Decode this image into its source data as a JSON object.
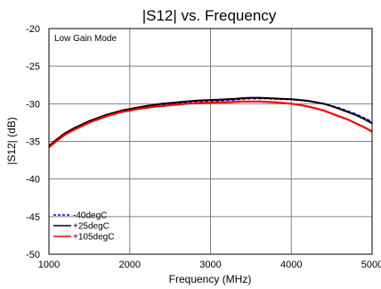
{
  "chart_data": {
    "type": "line",
    "title": "|S12| vs. Frequency",
    "xlabel": "Frequency (MHz)",
    "ylabel": "|S12| (dB)",
    "xlim": [
      1000,
      5000
    ],
    "ylim": [
      -50,
      -20
    ],
    "xticks": [
      1000,
      2000,
      3000,
      4000,
      5000
    ],
    "yticks": [
      -20,
      -25,
      -30,
      -35,
      -40,
      -45,
      -50
    ],
    "grid": true,
    "annotation": "Low Gain Mode",
    "legend_position": "bottom-left",
    "x": [
      1000,
      1100,
      1200,
      1300,
      1400,
      1500,
      1600,
      1700,
      1800,
      1900,
      2000,
      2100,
      2200,
      2300,
      2400,
      2500,
      2600,
      2700,
      2800,
      2900,
      3000,
      3100,
      3200,
      3300,
      3400,
      3500,
      3600,
      3700,
      3800,
      3900,
      4000,
      4100,
      4200,
      4300,
      4400,
      4500,
      4600,
      4700,
      4800,
      4900,
      5000
    ],
    "series": [
      {
        "name": "-40degC",
        "color": "#0000ff",
        "style": "dashed",
        "values": [
          -35.8,
          -34.9,
          -34.1,
          -33.5,
          -33.0,
          -32.5,
          -32.1,
          -31.7,
          -31.3,
          -31.0,
          -30.8,
          -30.6,
          -30.4,
          -30.25,
          -30.1,
          -30.0,
          -29.9,
          -29.8,
          -29.7,
          -29.65,
          -29.6,
          -29.55,
          -29.5,
          -29.45,
          -29.35,
          -29.3,
          -29.3,
          -29.3,
          -29.35,
          -29.4,
          -29.4,
          -29.5,
          -29.6,
          -29.8,
          -30.0,
          -30.3,
          -30.6,
          -31.0,
          -31.4,
          -31.9,
          -32.4
        ]
      },
      {
        "name": "+25degC",
        "color": "#000000",
        "style": "solid",
        "values": [
          -35.6,
          -34.7,
          -33.9,
          -33.3,
          -32.8,
          -32.3,
          -31.9,
          -31.5,
          -31.2,
          -30.9,
          -30.7,
          -30.5,
          -30.3,
          -30.15,
          -30.0,
          -29.9,
          -29.8,
          -29.7,
          -29.6,
          -29.55,
          -29.5,
          -29.45,
          -29.4,
          -29.35,
          -29.25,
          -29.2,
          -29.2,
          -29.25,
          -29.3,
          -29.35,
          -29.4,
          -29.5,
          -29.6,
          -29.8,
          -30.0,
          -30.3,
          -30.7,
          -31.1,
          -31.5,
          -32.0,
          -32.6
        ]
      },
      {
        "name": "+105degC",
        "color": "#ff0000",
        "style": "solid",
        "values": [
          -35.8,
          -34.9,
          -34.1,
          -33.5,
          -33.0,
          -32.5,
          -32.1,
          -31.7,
          -31.4,
          -31.1,
          -30.9,
          -30.7,
          -30.55,
          -30.4,
          -30.3,
          -30.2,
          -30.1,
          -30.0,
          -29.95,
          -29.9,
          -29.85,
          -29.8,
          -29.8,
          -29.75,
          -29.7,
          -29.7,
          -29.7,
          -29.75,
          -29.8,
          -29.9,
          -30.0,
          -30.15,
          -30.35,
          -30.6,
          -30.9,
          -31.3,
          -31.7,
          -32.1,
          -32.6,
          -33.1,
          -33.7
        ]
      }
    ]
  }
}
